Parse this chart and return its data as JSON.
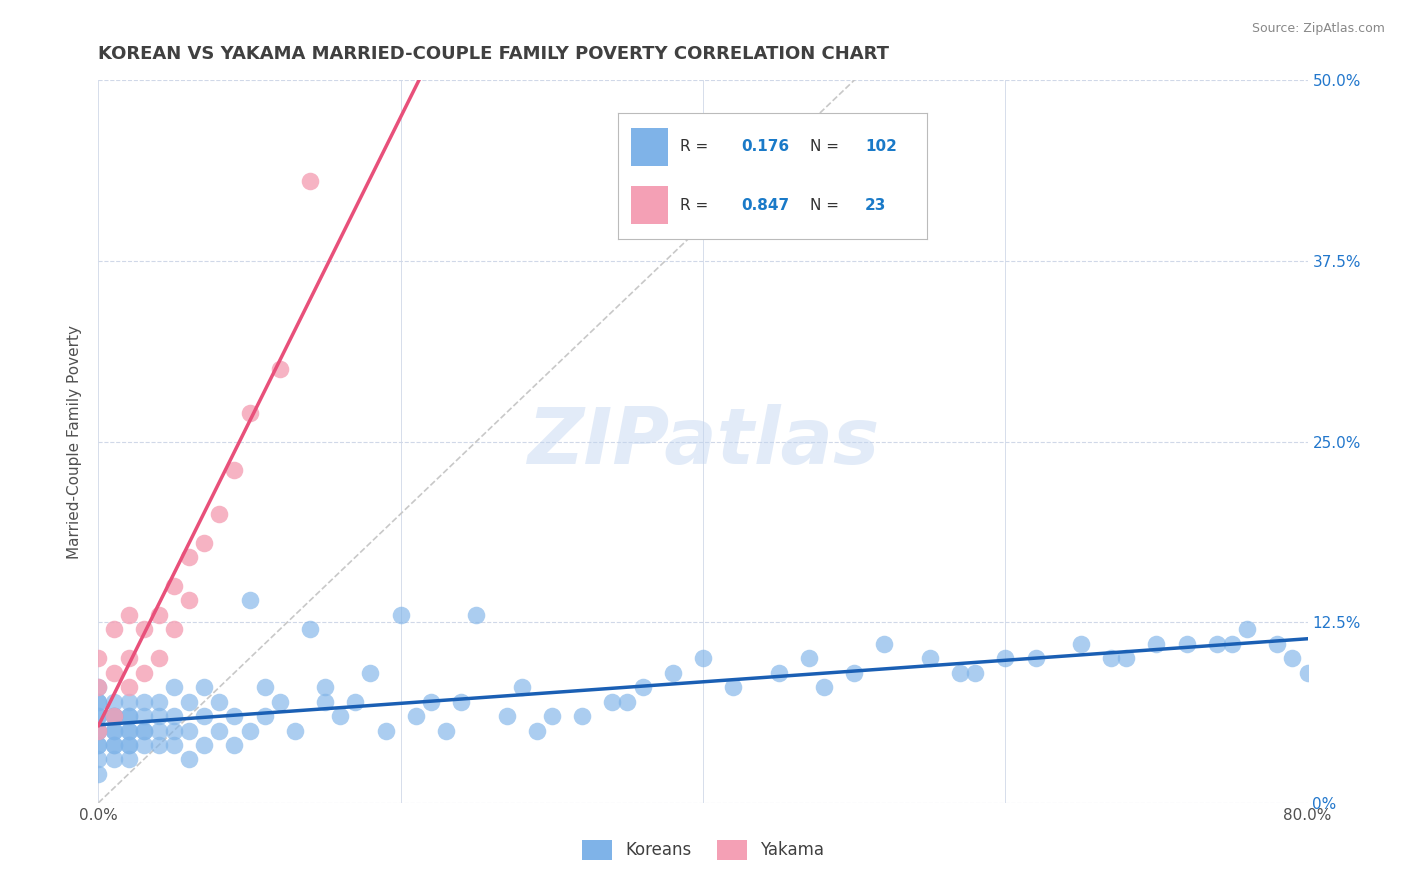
{
  "title": "KOREAN VS YAKAMA MARRIED-COUPLE FAMILY POVERTY CORRELATION CHART",
  "source_text": "Source: ZipAtlas.com",
  "ylabel": "Married-Couple Family Poverty",
  "watermark": "ZIPatlas",
  "xlim": [
    0.0,
    0.8
  ],
  "ylim": [
    0.0,
    0.5
  ],
  "ytick_positions": [
    0.0,
    0.125,
    0.25,
    0.375,
    0.5
  ],
  "ytick_labels": [
    "0%",
    "12.5%",
    "25.0%",
    "37.5%",
    "50.0%"
  ],
  "korean_R": 0.176,
  "korean_N": 102,
  "yakama_R": 0.847,
  "yakama_N": 23,
  "korean_color": "#7fb3e8",
  "yakama_color": "#f4a0b5",
  "korean_line_color": "#1a5fb4",
  "yakama_line_color": "#e8507a",
  "ref_line_color": "#c8c8c8",
  "legend_label_color": "#1a7ac8",
  "title_color": "#404040",
  "background_color": "#ffffff",
  "grid_color": "#d0d8e8",
  "korean_x": [
    0.0,
    0.0,
    0.0,
    0.0,
    0.0,
    0.0,
    0.0,
    0.0,
    0.0,
    0.0,
    0.0,
    0.01,
    0.01,
    0.01,
    0.01,
    0.01,
    0.01,
    0.01,
    0.01,
    0.01,
    0.02,
    0.02,
    0.02,
    0.02,
    0.02,
    0.02,
    0.02,
    0.02,
    0.03,
    0.03,
    0.03,
    0.03,
    0.03,
    0.04,
    0.04,
    0.04,
    0.04,
    0.05,
    0.05,
    0.05,
    0.05,
    0.06,
    0.06,
    0.06,
    0.07,
    0.07,
    0.07,
    0.08,
    0.08,
    0.09,
    0.09,
    0.1,
    0.1,
    0.11,
    0.11,
    0.12,
    0.13,
    0.14,
    0.15,
    0.16,
    0.17,
    0.18,
    0.19,
    0.2,
    0.21,
    0.22,
    0.23,
    0.24,
    0.25,
    0.27,
    0.29,
    0.3,
    0.32,
    0.34,
    0.36,
    0.38,
    0.4,
    0.42,
    0.45,
    0.47,
    0.5,
    0.52,
    0.55,
    0.57,
    0.6,
    0.62,
    0.65,
    0.67,
    0.7,
    0.72,
    0.74,
    0.76,
    0.78,
    0.79,
    0.8,
    0.75,
    0.68,
    0.58,
    0.48,
    0.35,
    0.28,
    0.15
  ],
  "korean_y": [
    0.05,
    0.06,
    0.07,
    0.04,
    0.03,
    0.08,
    0.02,
    0.07,
    0.05,
    0.06,
    0.04,
    0.05,
    0.06,
    0.04,
    0.07,
    0.03,
    0.06,
    0.05,
    0.04,
    0.06,
    0.05,
    0.06,
    0.04,
    0.07,
    0.03,
    0.05,
    0.04,
    0.06,
    0.05,
    0.06,
    0.04,
    0.07,
    0.05,
    0.06,
    0.04,
    0.07,
    0.05,
    0.06,
    0.04,
    0.08,
    0.05,
    0.07,
    0.05,
    0.03,
    0.06,
    0.04,
    0.08,
    0.07,
    0.05,
    0.06,
    0.04,
    0.14,
    0.05,
    0.08,
    0.06,
    0.07,
    0.05,
    0.12,
    0.08,
    0.06,
    0.07,
    0.09,
    0.05,
    0.13,
    0.06,
    0.07,
    0.05,
    0.07,
    0.13,
    0.06,
    0.05,
    0.06,
    0.06,
    0.07,
    0.08,
    0.09,
    0.1,
    0.08,
    0.09,
    0.1,
    0.09,
    0.11,
    0.1,
    0.09,
    0.1,
    0.1,
    0.11,
    0.1,
    0.11,
    0.11,
    0.11,
    0.12,
    0.11,
    0.1,
    0.09,
    0.11,
    0.1,
    0.09,
    0.08,
    0.07,
    0.08,
    0.07
  ],
  "yakama_x": [
    0.0,
    0.0,
    0.0,
    0.01,
    0.01,
    0.01,
    0.02,
    0.02,
    0.02,
    0.03,
    0.03,
    0.04,
    0.04,
    0.05,
    0.05,
    0.06,
    0.06,
    0.07,
    0.08,
    0.09,
    0.1,
    0.12,
    0.14
  ],
  "yakama_y": [
    0.05,
    0.08,
    0.1,
    0.06,
    0.09,
    0.12,
    0.08,
    0.1,
    0.13,
    0.09,
    0.12,
    0.1,
    0.13,
    0.12,
    0.15,
    0.14,
    0.17,
    0.18,
    0.2,
    0.23,
    0.27,
    0.3,
    0.43
  ]
}
